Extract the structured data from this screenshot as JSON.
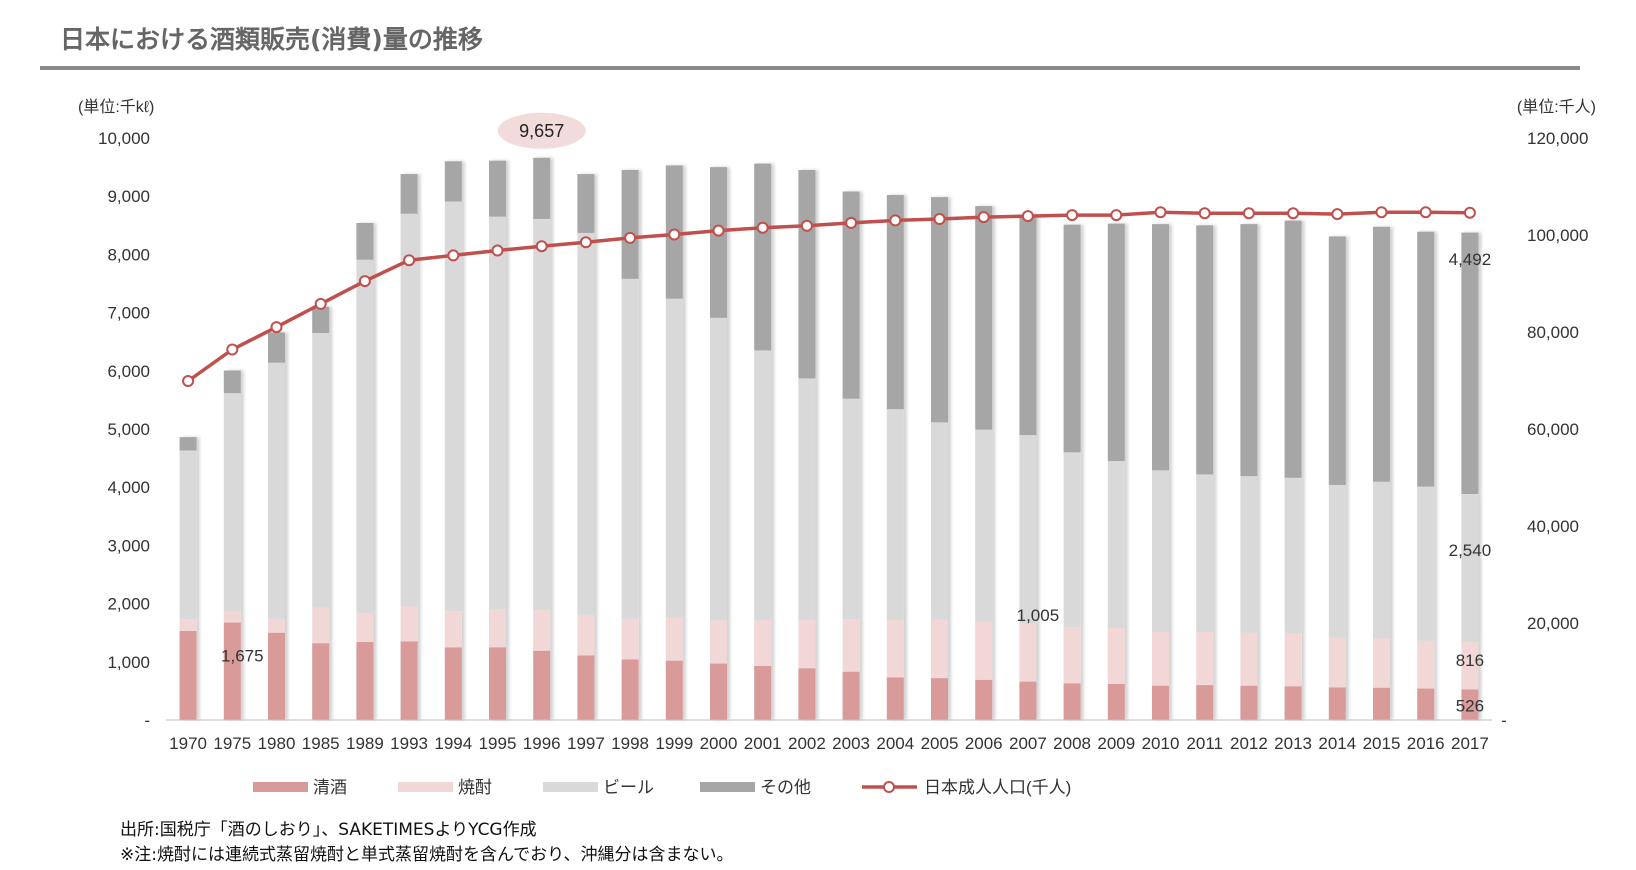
{
  "page": {
    "title": "日本における酒類販売(消費)量の推移",
    "source_note": "出所:国税庁「酒のしおり」、SAKETIMESよりYCG作成",
    "footnote": "※注:焼酎には連続式蒸留焼酎と単式蒸留焼酎を含んでおり、沖縄分は含まない。"
  },
  "chart_data": {
    "type": "bar",
    "stacked": true,
    "categories": [
      "1970",
      "1975",
      "1980",
      "1985",
      "1989",
      "1993",
      "1994",
      "1995",
      "1996",
      "1997",
      "1998",
      "1999",
      "2000",
      "2001",
      "2002",
      "2003",
      "2004",
      "2005",
      "2006",
      "2007",
      "2008",
      "2009",
      "2010",
      "2011",
      "2012",
      "2013",
      "2014",
      "2015",
      "2016",
      "2017"
    ],
    "y_unit_label": "(単位:千kℓ)",
    "y2_unit_label": "(単位:千人)",
    "ylim": [
      0,
      10000
    ],
    "y2lim": [
      0,
      120000
    ],
    "y_ticks": [
      "-",
      "1,000",
      "2,000",
      "3,000",
      "4,000",
      "5,000",
      "6,000",
      "7,000",
      "8,000",
      "9,000",
      "10,000"
    ],
    "y2_ticks": [
      "-",
      "20,000",
      "40,000",
      "60,000",
      "80,000",
      "100,000",
      "120,000"
    ],
    "grid": false,
    "legend_position": "bottom",
    "series": [
      {
        "name": "清酒",
        "color": "#d99a9a",
        "values": [
          1530,
          1675,
          1500,
          1320,
          1340,
          1350,
          1250,
          1250,
          1190,
          1110,
          1040,
          1020,
          970,
          930,
          890,
          830,
          730,
          720,
          690,
          660,
          630,
          620,
          590,
          600,
          590,
          580,
          560,
          555,
          540,
          526
        ]
      },
      {
        "name": "焼酎",
        "color": "#f2d7d7",
        "values": [
          200,
          190,
          240,
          610,
          500,
          600,
          620,
          660,
          700,
          700,
          700,
          740,
          740,
          790,
          830,
          900,
          990,
          1005,
          1000,
          1005,
          970,
          960,
          920,
          910,
          910,
          910,
          860,
          850,
          820,
          816
        ]
      },
      {
        "name": "ビール",
        "color": "#d9d9d9",
        "values": [
          2900,
          3750,
          4400,
          4720,
          6070,
          6750,
          7040,
          6740,
          6720,
          6560,
          5840,
          5480,
          5200,
          4630,
          4150,
          3790,
          3620,
          3390,
          3300,
          3230,
          3000,
          2870,
          2780,
          2710,
          2690,
          2670,
          2620,
          2690,
          2650,
          2540
        ]
      },
      {
        "name": "その他",
        "color": "#a6a6a6",
        "values": [
          230,
          390,
          520,
          450,
          630,
          680,
          690,
          960,
          1050,
          1010,
          1870,
          2290,
          2590,
          3210,
          3580,
          3560,
          3680,
          3870,
          3840,
          3790,
          3910,
          4080,
          4230,
          4280,
          4330,
          4420,
          4270,
          4380,
          4380,
          4492
        ]
      }
    ],
    "line_series": {
      "name": "日本成人人口(千人)",
      "color": "#c0504d",
      "axis": "right",
      "values": [
        69900,
        76400,
        81000,
        85800,
        90500,
        94800,
        95800,
        96800,
        97700,
        98500,
        99400,
        100100,
        100900,
        101500,
        101900,
        102500,
        103000,
        103300,
        103700,
        103900,
        104100,
        104100,
        104700,
        104500,
        104500,
        104500,
        104300,
        104700,
        104700,
        104600
      ]
    },
    "annotations": [
      {
        "text": "9,657",
        "category": "1996",
        "style": "bubble",
        "color": "#f2dcdb"
      },
      {
        "text": "1,675",
        "category": "1975",
        "series": "清酒"
      },
      {
        "text": "1,005",
        "category": "2007",
        "series": "焼酎"
      },
      {
        "text": "4,492",
        "category": "2017",
        "series": "その他"
      },
      {
        "text": "2,540",
        "category": "2017",
        "series": "ビール"
      },
      {
        "text": "816",
        "category": "2017",
        "series": "焼酎"
      },
      {
        "text": "526",
        "category": "2017",
        "series": "清酒"
      }
    ]
  }
}
